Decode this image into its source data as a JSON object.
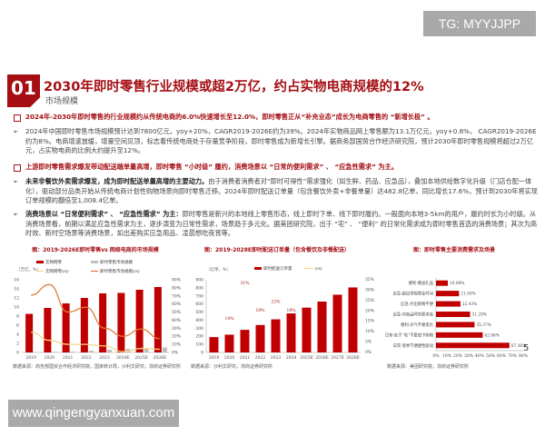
{
  "watermarks": {
    "top": "TG: MYYJJPP",
    "bottom": "www.qingengyanxuan.com"
  },
  "section_number": "01",
  "title": "2030年即时零售行业规模或超2万亿，约占实物电商规模的12%",
  "subtitle": "市场规模",
  "points": [
    {
      "head": "2024年-2030年即时零售的行业规模约从传统电商的6.0%快速增长至12.0%，即时零售正从“补充业态”成长为电商零售的 “新增长极” 。"
    },
    {
      "bullet": "2024年中国即时零售市场规模预计达到7800亿元，yoy+20%，CAGR2019-2026E约为39%。2024年实物商品网上零售额为13.1万亿元，yoy+0.8%， CAGR2019-2026E约为8%。电商增速放缓，增量空间见顶，标志着传统电商处于存量竞争阶段，即时零售成为新增长引擎。据商务部国贸合作经济研究院，预计2030年即时零售规模将超过2万亿元，占实物电商的比例大约提升至12%。"
    },
    {
      "head": "上游即时零售需求爆发带动配送端单量高增，即时零售 “小时级” 履约，消费场景以 “日常的便利需求” 、 “应急性需求” 为主。"
    },
    {
      "bullet_bold": "未来非餐饮外卖需求爆发，成为即时配送单量高增的主要动力。",
      "bullet": "由于消费者消费者对“即时可得性”需求强化（如生鲜、药品、应急品），叠加本地供给数字化升级（门店仓配一体化），驱动部分品类开始从传统电商计划性购物场景向即时零售迁移。2024年即时配送订单量（包含餐饮外卖+非餐单量）达482.8亿单，同比增长17.6%，预计到2030年将实现订单规模的翻倍至1,008.4亿单。"
    },
    {
      "bullet_bold": "消费场景以 “日常便利需求” 、 “应急性需求” 为主：",
      "bullet": "即时零售是新兴的本地线上零售形态，线上即时下单、线下即时履约。一般面向本地3-5km的用户，履约时长为小时级。从消费场景看，前期以满足应急性需求为主，逐步演变为日常性需求，场景趋于多元化。据美团研究院，出于 “宅” 、 “便利” 的日常化需求成为即时零售首选的消费场景；其次为高时效、新时空场景等消费场景，如出差购买应急用品、凌晨想吃夜宵等。"
    }
  ],
  "chart_data": [
    {
      "type": "bar",
      "title": "图：2019-2026E即时零售vs 网络电商的市场规模",
      "unit": "（万亿，%）",
      "categories": [
        "2019",
        "2020",
        "2021",
        "2022",
        "2023",
        "2024E",
        "2025E",
        "2026E"
      ],
      "ylim": [
        0,
        16
      ],
      "y2lim": [
        0,
        90
      ],
      "series": [
        {
          "name": "实物网零",
          "kind": "bar",
          "axis": "left",
          "color": "#c00000",
          "values": [
            8.5,
            9.8,
            10.8,
            12.0,
            13.0,
            13.1,
            13.8,
            14.4
          ]
        },
        {
          "name": "即时零售市场规模",
          "kind": "bar",
          "axis": "left",
          "color": "#bfbfbf",
          "values": [
            0.1,
            0.15,
            0.2,
            0.4,
            0.6,
            0.78,
            0.95,
            1.1
          ]
        },
        {
          "name": "实物网零yoy",
          "kind": "line",
          "axis": "right",
          "color": "#f5d68a",
          "values": [
            25,
            15,
            10,
            10,
            8,
            1,
            5,
            4
          ]
        },
        {
          "name": "即时零售市场规模yoy",
          "kind": "line",
          "axis": "right",
          "color": "#e07b39",
          "values": [
            71,
            84,
            50,
            56,
            30,
            20,
            29,
            17
          ]
        }
      ],
      "yticks": [
        "0",
        "2",
        "4",
        "6",
        "8",
        "10",
        "12",
        "14",
        "16"
      ],
      "y2ticks": [
        "0%",
        "10%",
        "20%",
        "30%",
        "40%",
        "50%",
        "60%",
        "70%",
        "80%",
        "90%"
      ],
      "source": "数据来源：商务部国贸合作经济研究院，国家统计局，沙利文研究，浙商证券研究所"
    },
    {
      "type": "bar",
      "title": "图：2019-2028E即时配送订单量（包含餐饮及非餐配送）",
      "unit": "（亿单，%）",
      "categories": [
        "2019",
        "2020",
        "2021",
        "2022",
        "2023",
        "2024",
        "2025E",
        "2026E",
        "2027E",
        "2028E"
      ],
      "ylim": [
        0,
        900
      ],
      "series": [
        {
          "name": "即时配送订单量",
          "kind": "bar",
          "color": "#c00000",
          "values": [
            190,
            220,
            280,
            340,
            410,
            483,
            555,
            630,
            715,
            805
          ]
        },
        {
          "name": "yoy",
          "kind": "line",
          "color": "#f5d68a",
          "values": [
            null,
            14,
            31,
            18,
            22,
            18,
            15,
            14,
            13,
            12
          ],
          "labels": [
            "",
            "14%",
            "31%",
            "18%",
            "22%",
            "18%",
            "15%",
            "14%",
            "13%",
            "12%"
          ]
        }
      ],
      "yticks": [
        "0",
        "100",
        "200",
        "300",
        "400",
        "500",
        "600",
        "700",
        "800",
        "900"
      ],
      "source": "数据来源：沙利文研究，浙商证券研究所"
    },
    {
      "type": "bar",
      "orientation": "horizontal",
      "title": "图：即时零售主要消费需求及场景",
      "categories": [
        "便利-赠送礼品",
        "应急-超出常规营业时间",
        "应急-外出购物不便",
        "应急-对商品时效要求高",
        "便利-天气不便恶劣",
        "日常-处于“宅”不愿线下购物",
        "日常-受季节便捷性驱动"
      ],
      "values": [
        10.88,
        21.09,
        22.43,
        31.29,
        35.37,
        42.86,
        67.36
      ],
      "labels": [
        "10.88%",
        "21.09%",
        "22.43%",
        "31.29%",
        "35.37%",
        "42.86%",
        "67.36%"
      ],
      "xlim": [
        0,
        80
      ],
      "xticks": [
        "0%",
        "10%",
        "20%",
        "30%",
        "40%",
        "50%",
        "60%",
        "70%",
        "80%"
      ],
      "ghost_ticks": [
        "0%",
        "5%",
        "10%",
        "15%",
        "20%",
        "25%",
        "30%",
        "35%"
      ],
      "color": "#c00000",
      "source": "数据来源：美团研究院，浙商证券研究所"
    }
  ],
  "page_number": "5"
}
